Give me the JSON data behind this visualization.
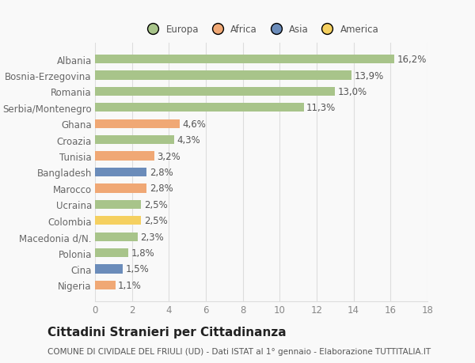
{
  "categories": [
    "Albania",
    "Bosnia-Erzegovina",
    "Romania",
    "Serbia/Montenegro",
    "Ghana",
    "Croazia",
    "Tunisia",
    "Bangladesh",
    "Marocco",
    "Ucraina",
    "Colombia",
    "Macedonia d/N.",
    "Polonia",
    "Cina",
    "Nigeria"
  ],
  "values": [
    16.2,
    13.9,
    13.0,
    11.3,
    4.6,
    4.3,
    3.2,
    2.8,
    2.8,
    2.5,
    2.5,
    2.3,
    1.8,
    1.5,
    1.1
  ],
  "labels": [
    "16,2%",
    "13,9%",
    "13,0%",
    "11,3%",
    "4,6%",
    "4,3%",
    "3,2%",
    "2,8%",
    "2,8%",
    "2,5%",
    "2,5%",
    "2,3%",
    "1,8%",
    "1,5%",
    "1,1%"
  ],
  "colors": [
    "#a8c48a",
    "#a8c48a",
    "#a8c48a",
    "#a8c48a",
    "#f0a875",
    "#a8c48a",
    "#f0a875",
    "#6b8cba",
    "#f0a875",
    "#a8c48a",
    "#f5d060",
    "#a8c48a",
    "#a8c48a",
    "#6b8cba",
    "#f0a875"
  ],
  "legend_labels": [
    "Europa",
    "Africa",
    "Asia",
    "America"
  ],
  "legend_colors": [
    "#a8c48a",
    "#f0a875",
    "#6b8cba",
    "#f5d060"
  ],
  "title": "Cittadini Stranieri per Cittadinanza",
  "subtitle": "COMUNE DI CIVIDALE DEL FRIULI (UD) - Dati ISTAT al 1° gennaio - Elaborazione TUTTITALIA.IT",
  "xlim": [
    0,
    18
  ],
  "xticks": [
    0,
    2,
    4,
    6,
    8,
    10,
    12,
    14,
    16,
    18
  ],
  "background_color": "#f9f9f9",
  "grid_color": "#dddddd",
  "bar_height": 0.55,
  "label_fontsize": 8.5,
  "tick_fontsize": 8.5,
  "title_fontsize": 11,
  "subtitle_fontsize": 7.5
}
